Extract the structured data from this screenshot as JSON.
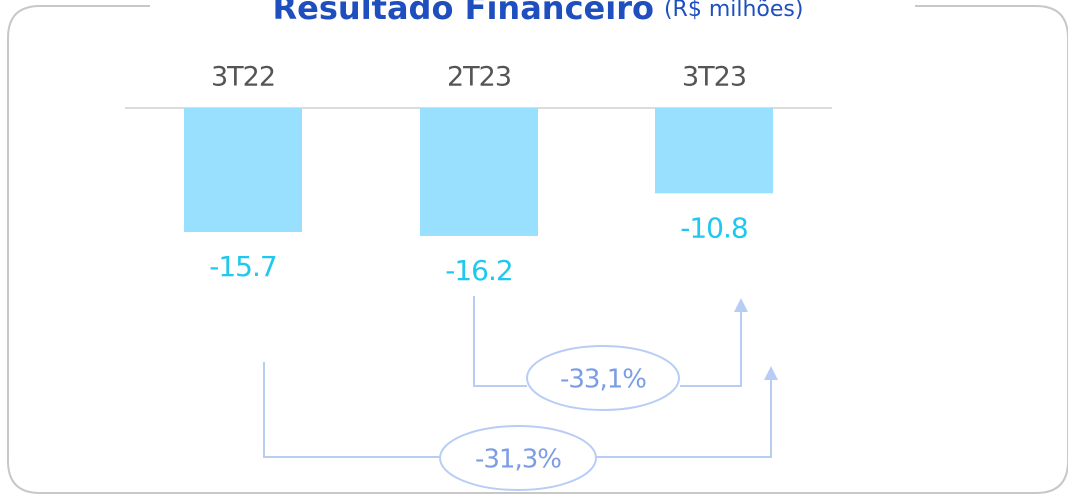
{
  "chart_data": {
    "type": "bar",
    "title": "Resultado Financeiro",
    "subtitle": "(R$ milhões)",
    "categories": [
      "3T22",
      "2T23",
      "3T23"
    ],
    "values": [
      -15.7,
      -16.2,
      -10.8
    ],
    "color": "#99e0ff",
    "ylim": [
      -20,
      0
    ],
    "annotations": [
      "-33,1%",
      "-31,3%"
    ]
  }
}
